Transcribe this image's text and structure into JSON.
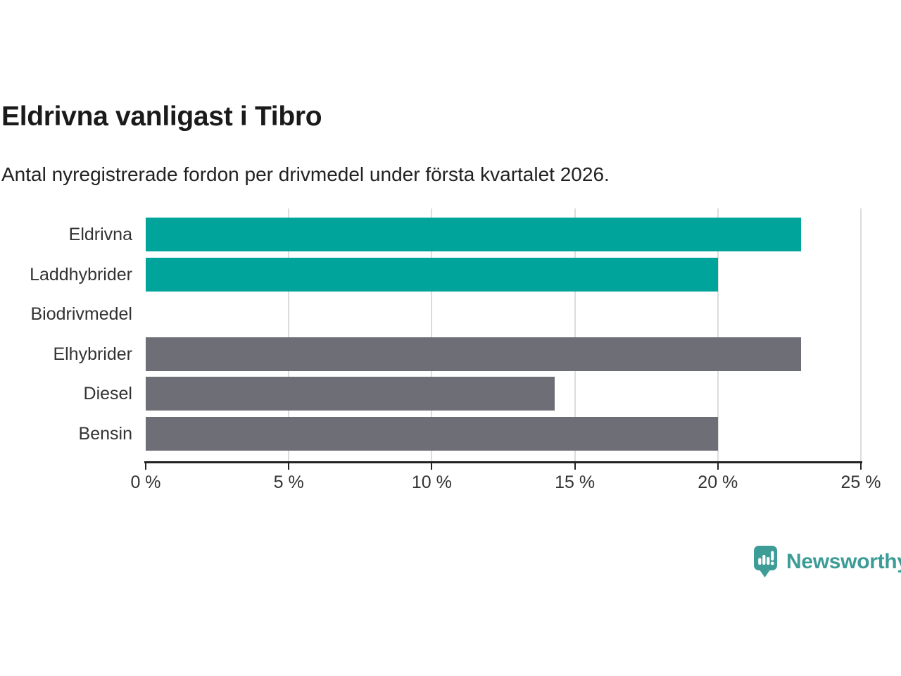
{
  "title": "Eldrivna vanligast i Tibro",
  "subtitle": "Antal nyregistrerade fordon per drivmedel under första kvartalet 2026.",
  "chart_data": {
    "type": "bar",
    "orientation": "horizontal",
    "title": "Eldrivna vanligast i Tibro",
    "subtitle": "Antal nyregistrerade fordon per drivmedel under första kvartalet 2026.",
    "categories": [
      "Eldrivna",
      "Laddhybrider",
      "Biodrivmedel",
      "Elhybrider",
      "Diesel",
      "Bensin"
    ],
    "values": [
      22.9,
      20,
      0,
      22.9,
      14.3,
      20
    ],
    "bar_colors": [
      "#00a49a",
      "#00a49a",
      "#00a49a",
      "#6e6e76",
      "#6e6e76",
      "#6e6e76"
    ],
    "xlabel": "",
    "ylabel": "",
    "xlim": [
      0,
      25
    ],
    "xticks": [
      {
        "value": 0,
        "label": "0 %"
      },
      {
        "value": 5,
        "label": "5 %"
      },
      {
        "value": 10,
        "label": "10 %"
      },
      {
        "value": 15,
        "label": "15 %"
      },
      {
        "value": 20,
        "label": "20 %"
      },
      {
        "value": 25,
        "label": "25 %"
      }
    ],
    "grid": "vertical-gridlines-at-ticks",
    "legend": "none"
  },
  "colors": {
    "accent_teal": "#00a49a",
    "bar_gray": "#6e6e76",
    "gridline": "#dcdcdc",
    "axis": "#222222",
    "label_text": "#333333",
    "title_text": "#1a1a1a",
    "logo_teal": "#3d9c96"
  },
  "logo": {
    "text": "Newsworthy",
    "icon": "speech-bubble-bar-chart"
  }
}
